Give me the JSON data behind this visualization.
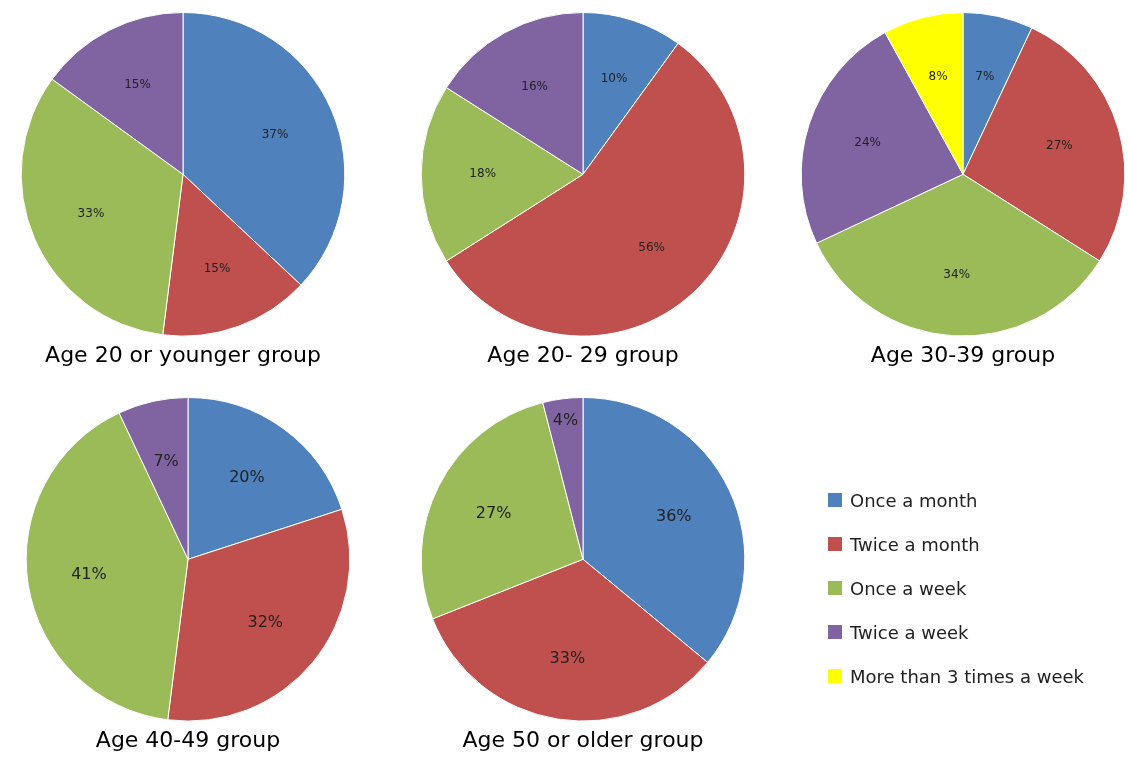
{
  "chart_data": [
    {
      "type": "pie",
      "title": "Age 20 or younger group",
      "categories": [
        null,
        null,
        null,
        null
      ],
      "values": [
        37,
        15,
        33,
        15
      ],
      "colors": [
        "#4f81bd",
        "#c0504d",
        "#9bbb59",
        "#8064a2"
      ],
      "value_labels": [
        "37%",
        "15%",
        "33%",
        "15%"
      ]
    },
    {
      "type": "pie",
      "title": "Age 20- 29 group",
      "categories": [
        null,
        null,
        null,
        null
      ],
      "values": [
        10,
        56,
        18,
        16
      ],
      "colors": [
        "#4f81bd",
        "#c0504d",
        "#9bbb59",
        "#8064a2"
      ],
      "value_labels": [
        "10%",
        "56%",
        "18%",
        "16%"
      ]
    },
    {
      "type": "pie",
      "title": "Age 30-39 group",
      "categories": [
        "Once a month",
        "Twice a month",
        "Once a week",
        "Twice a week",
        "More than 3 times a week"
      ],
      "values": [
        7,
        27,
        34,
        24,
        8
      ],
      "colors": [
        "#4f81bd",
        "#c0504d",
        "#9bbb59",
        "#8064a2",
        "#ffff00"
      ],
      "value_labels": [
        "7%",
        "27%",
        "34%",
        "24%",
        "8%"
      ],
      "legend": "bottom right"
    },
    {
      "type": "pie",
      "title": "Age 40-49 group",
      "categories": [
        null,
        null,
        null,
        null
      ],
      "values": [
        20,
        32,
        41,
        7
      ],
      "colors": [
        "#4f81bd",
        "#c0504d",
        "#9bbb59",
        "#8064a2"
      ],
      "value_labels": [
        "20%",
        "32%",
        "41%",
        "7%"
      ]
    },
    {
      "type": "pie",
      "title": "Age 50 or older group",
      "categories": [
        null,
        null,
        null,
        null
      ],
      "values": [
        36,
        33,
        27,
        4
      ],
      "colors": [
        "#4f81bd",
        "#c0504d",
        "#9bbb59",
        "#8064a2"
      ],
      "value_labels": [
        "36%",
        "33%",
        "27%",
        "4%"
      ]
    }
  ]
}
